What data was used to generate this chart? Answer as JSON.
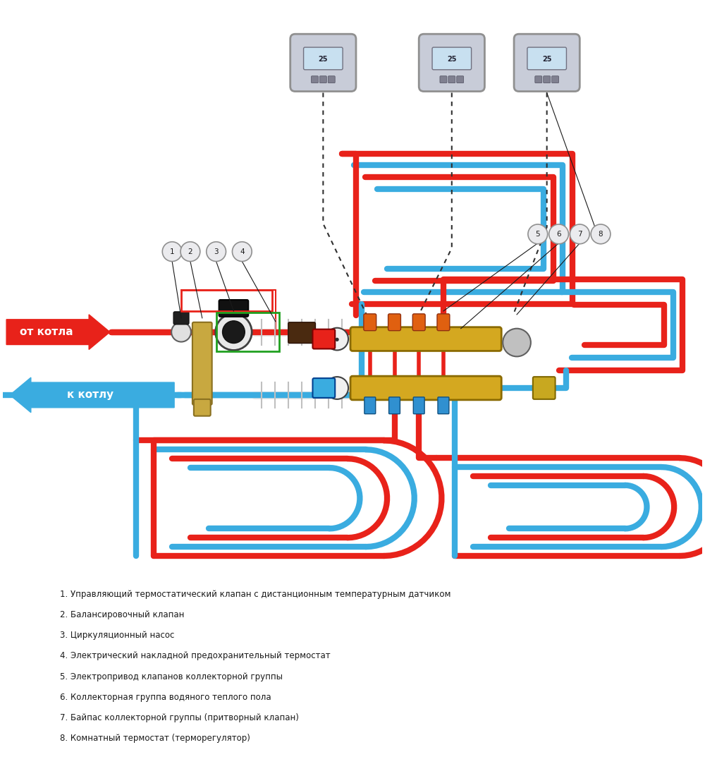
{
  "bg_color": "#ffffff",
  "red_color": "#e8221a",
  "blue_color": "#3aace0",
  "gold_color": "#d4a820",
  "green_color": "#20a020",
  "black_color": "#1a1a1a",
  "legend_items": [
    "1. Управляющий термостатический клапан с дистанционным температурным датчиком",
    "2. Балансировочный клапан",
    "3. Циркуляционный насос",
    "4. Электрический накладной предохранительный термостат",
    "5. Электропривод клапанов коллекторной группы",
    "6. Коллекторная группа водяного теплого пола",
    "7. Байпас коллекторной группы (притворный клапан)",
    "8. Комнатный термостат (терморегулятор)"
  ],
  "label_from_boiler": "от котла",
  "label_to_boiler": "к котлу",
  "figsize": [
    10,
    11
  ],
  "dpi": 100
}
